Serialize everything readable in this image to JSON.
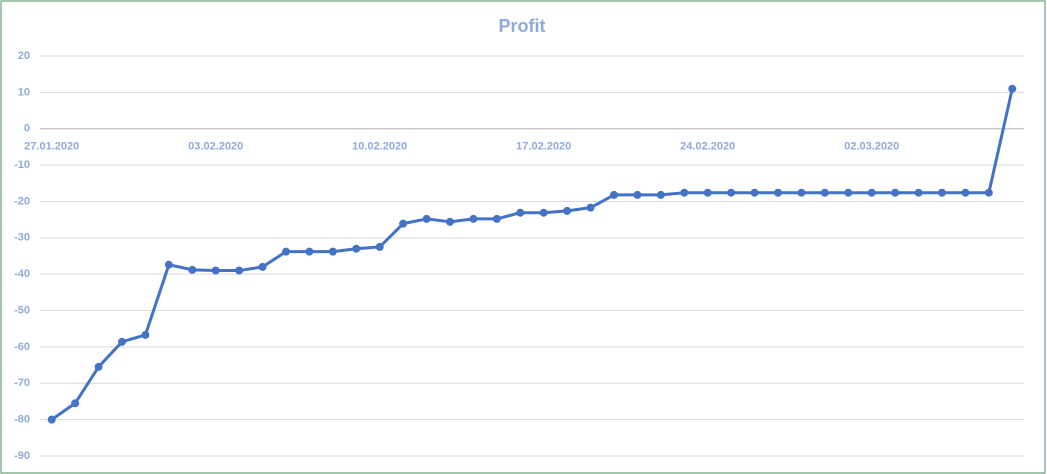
{
  "chart_data": {
    "type": "line",
    "title": "Profit",
    "categories": [
      "27.01.2020",
      null,
      null,
      null,
      null,
      null,
      null,
      "03.02.2020",
      null,
      null,
      null,
      null,
      null,
      null,
      "10.02.2020",
      null,
      null,
      null,
      null,
      null,
      null,
      "17.02.2020",
      null,
      null,
      null,
      null,
      null,
      null,
      "24.02.2020",
      null,
      null,
      null,
      null,
      null,
      null,
      "02.03.2020",
      null,
      null,
      null,
      null,
      null,
      null
    ],
    "series": [
      {
        "name": "Profit",
        "color": "#4472c4",
        "values": [
          -80,
          -75.5,
          -65.5,
          -58.6,
          -56.7,
          -37.4,
          -38.8,
          -39,
          -39,
          -38,
          -33.8,
          -33.8,
          -33.8,
          -33,
          -32.5,
          -26.1,
          -24.8,
          -25.6,
          -24.8,
          -24.8,
          -23.1,
          -23.1,
          -22.6,
          -21.7,
          -18.2,
          -18.2,
          -18.2,
          -17.6,
          -17.6,
          -17.6,
          -17.6,
          -17.6,
          -17.6,
          -17.6,
          -17.6,
          -17.6,
          -17.6,
          -17.6,
          -17.6,
          -17.6,
          -17.6,
          11
        ]
      }
    ],
    "ylim": [
      -90,
      20
    ],
    "yticks": [
      -90,
      -80,
      -70,
      -60,
      -50,
      -40,
      -30,
      -20,
      -10,
      0,
      10,
      20
    ],
    "grid": true
  }
}
